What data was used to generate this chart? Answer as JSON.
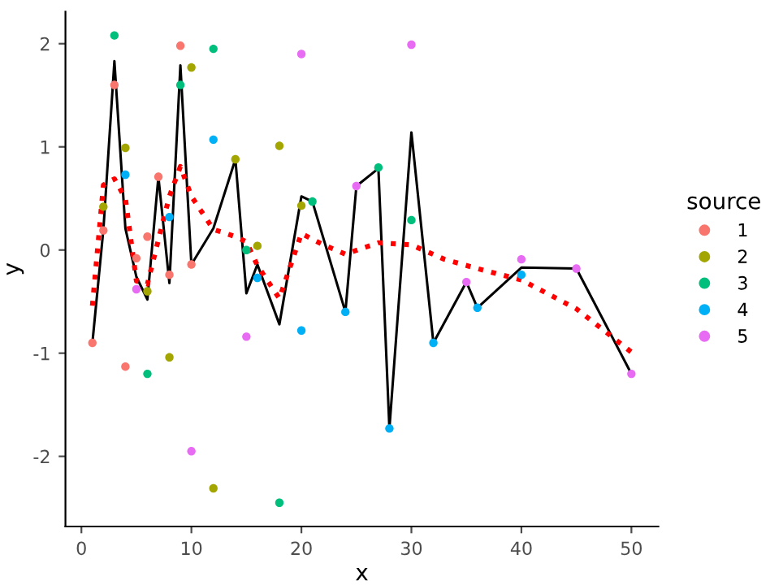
{
  "chart_data": {
    "type": "scatter",
    "xlabel": "x",
    "ylabel": "y",
    "legend_title": "source",
    "legend": "right",
    "grid": false,
    "marker": "circle",
    "xlim": [
      -1.45,
      52.45
    ],
    "ylim": [
      -2.68,
      2.31
    ],
    "xticks": [
      0,
      10,
      20,
      30,
      40,
      50
    ],
    "yticks": [
      -2,
      -1,
      0,
      1,
      2
    ],
    "series": [
      {
        "name": "1",
        "color": "#f8766d",
        "x": [
          1,
          2,
          3,
          4,
          5,
          6,
          7,
          8,
          9,
          10
        ],
        "values": [
          -0.9,
          0.19,
          1.6,
          -1.13,
          -0.08,
          0.13,
          0.71,
          -0.24,
          1.98,
          -0.14
        ]
      },
      {
        "name": "2",
        "color": "#a3a500",
        "x": [
          2,
          4,
          6,
          8,
          10,
          12,
          14,
          16,
          18,
          20
        ],
        "values": [
          0.42,
          0.99,
          -0.4,
          -1.04,
          1.77,
          -2.31,
          0.88,
          0.04,
          1.01,
          0.43
        ]
      },
      {
        "name": "3",
        "color": "#00bf7d",
        "x": [
          3,
          6,
          9,
          12,
          15,
          18,
          21,
          24,
          27,
          30
        ],
        "values": [
          2.08,
          -1.2,
          1.6,
          1.95,
          0.0,
          -2.45,
          0.47,
          null,
          0.8,
          0.29
        ]
      },
      {
        "name": "4",
        "color": "#00b0f6",
        "x": [
          4,
          8,
          12,
          16,
          20,
          24,
          28,
          32,
          36,
          40
        ],
        "values": [
          0.73,
          0.32,
          1.07,
          -0.27,
          -0.78,
          -0.6,
          -1.73,
          -0.9,
          -0.56,
          -0.24
        ]
      },
      {
        "name": "5",
        "color": "#e76bf3",
        "x": [
          5,
          10,
          15,
          20,
          25,
          30,
          35,
          40,
          45,
          50
        ],
        "values": [
          -0.38,
          -1.95,
          -0.84,
          1.9,
          0.62,
          1.99,
          -0.31,
          -0.09,
          -0.18,
          -1.2
        ]
      },
      {
        "type": "line",
        "color": "#000000",
        "line_style": "solid",
        "marker": "none",
        "x": [
          1,
          2,
          3,
          4,
          5,
          6,
          7,
          8,
          9,
          10,
          12,
          14,
          15,
          16,
          18,
          20,
          21,
          24,
          25,
          27,
          28,
          30,
          32,
          35,
          36,
          40,
          45,
          50
        ],
        "values": [
          -0.9,
          0.2,
          1.83,
          0.21,
          -0.26,
          -0.48,
          0.71,
          -0.32,
          1.79,
          -0.14,
          0.21,
          0.88,
          -0.42,
          -0.14,
          -0.72,
          0.52,
          0.47,
          -0.6,
          0.62,
          0.79,
          -1.73,
          1.14,
          -0.9,
          -0.31,
          -0.56,
          -0.17,
          -0.18,
          -1.2
        ]
      },
      {
        "type": "line",
        "color": "#ff0000",
        "line_style": "dotted",
        "marker": "none",
        "x": [
          1,
          2,
          3,
          4,
          5,
          6,
          7,
          8,
          9,
          10,
          12,
          14,
          15,
          16,
          18,
          20,
          22,
          24,
          27,
          30,
          33,
          36,
          40,
          45,
          50
        ],
        "values": [
          -0.54,
          0.63,
          0.69,
          0.5,
          -0.3,
          -0.33,
          0.1,
          0.52,
          0.81,
          0.52,
          0.2,
          0.13,
          0.08,
          -0.15,
          -0.47,
          0.16,
          0.05,
          -0.04,
          0.07,
          0.05,
          -0.09,
          -0.18,
          -0.29,
          -0.57,
          -0.99
        ]
      }
    ]
  }
}
